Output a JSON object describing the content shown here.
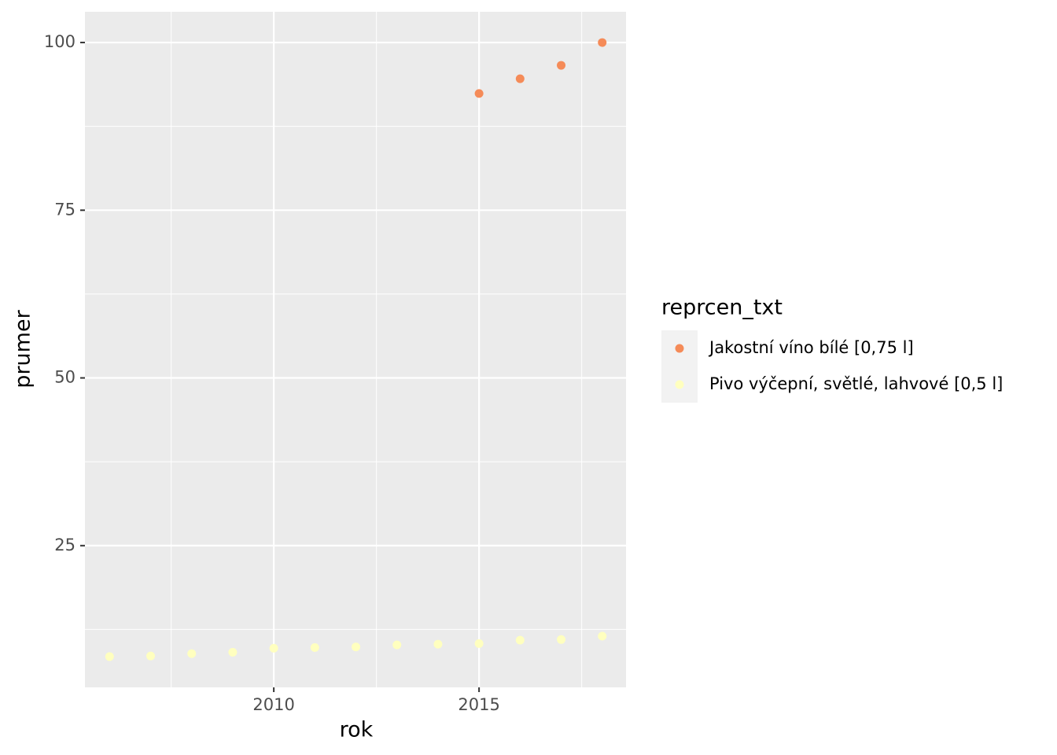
{
  "chart_data": {
    "type": "scatter",
    "xlabel": "rok",
    "ylabel": "prumer",
    "legend_title": "reprcen_txt",
    "xlim": [
      2005.4,
      2018.58
    ],
    "xticks": [
      2010,
      2015
    ],
    "ylim": [
      3.87,
      104.58
    ],
    "yticks": [
      25,
      50,
      75,
      100
    ],
    "grid": true,
    "legend": "right",
    "series": [
      {
        "name": "Jakostní víno bílé [0,75 l]",
        "color": "#f58b58",
        "x": [
          2015,
          2016,
          2017,
          2018
        ],
        "values": [
          92.4,
          94.6,
          96.6,
          100
        ]
      },
      {
        "name": "Pivo výčepní, světlé, lahvové [0,5 l]",
        "color": "#ffffbf",
        "x": [
          2006,
          2007,
          2008,
          2009,
          2010,
          2011,
          2012,
          2013,
          2014,
          2015,
          2016,
          2017,
          2018
        ],
        "values": [
          8.45,
          8.55,
          8.9,
          9.1,
          9.7,
          9.8,
          9.9,
          10.2,
          10.3,
          10.4,
          10.9,
          11.0,
          11.5
        ]
      }
    ]
  }
}
